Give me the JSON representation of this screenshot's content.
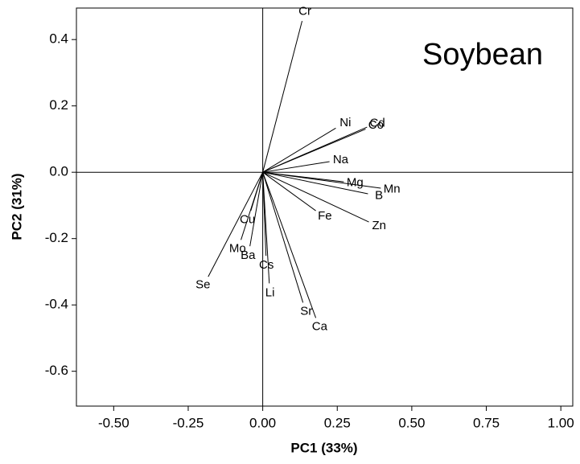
{
  "chart_data": {
    "type": "biplot",
    "annotation": "Soybean",
    "x_label": "PC1 (33%)",
    "y_label": "PC2 (31%)",
    "labels": [
      "Cr",
      "Ni",
      "Cd",
      "Co",
      "Na",
      "Mg",
      "Mn",
      "B",
      "Fe",
      "Zn",
      "Cu",
      "Mo",
      "Ba",
      "Cs",
      "Se",
      "Li",
      "Sr",
      "Ca"
    ],
    "x": [
      0.132,
      0.245,
      0.35,
      0.345,
      0.224,
      0.272,
      0.396,
      0.353,
      0.178,
      0.356,
      -0.04,
      -0.073,
      -0.043,
      0.011,
      -0.183,
      0.022,
      0.135,
      0.178
    ],
    "y": [
      0.456,
      0.133,
      0.136,
      0.13,
      0.032,
      -0.029,
      -0.048,
      -0.065,
      -0.116,
      -0.15,
      -0.116,
      -0.204,
      -0.223,
      -0.252,
      -0.315,
      -0.335,
      -0.393,
      -0.439
    ],
    "color": "#000000",
    "xlim": [
      -0.625,
      1.04
    ],
    "ylim": [
      -0.705,
      0.495
    ],
    "xticks": [
      {
        "value": -0.5,
        "label": "-0.50"
      },
      {
        "value": -0.25,
        "label": "-0.25"
      },
      {
        "value": 0,
        "label": "0.00"
      },
      {
        "value": 0.25,
        "label": "0.25"
      },
      {
        "value": 0.5,
        "label": "0.50"
      },
      {
        "value": 0.75,
        "label": "0.75"
      },
      {
        "value": 1,
        "label": "1.00"
      }
    ],
    "yticks": [
      -0.6,
      -0.4,
      -0.2,
      {
        "value": 0,
        "label": "0.0"
      },
      0.2,
      0.4
    ]
  }
}
